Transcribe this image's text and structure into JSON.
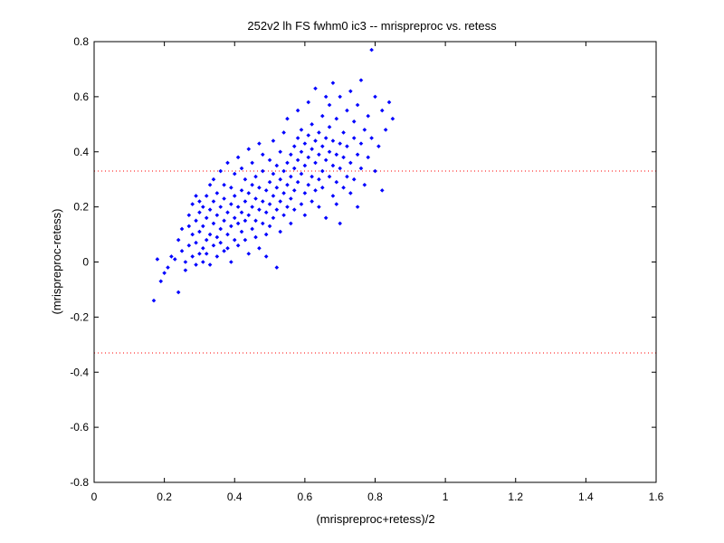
{
  "chart_data": {
    "type": "scatter",
    "title": "252v2 lh FS fwhm0 ic3 -- mrispreproc vs. retess",
    "xlabel": "(mrispreproc+retess)/2",
    "ylabel": "(mrispreproc-retess)",
    "xlim": [
      0,
      1.6
    ],
    "ylim": [
      -0.8,
      0.8
    ],
    "xticks": [
      "0",
      "0.2",
      "0.4",
      "0.6",
      "0.8",
      "1",
      "1.2",
      "1.4",
      "1.6"
    ],
    "yticks": [
      "-0.8",
      "-0.6",
      "-0.4",
      "-0.2",
      "0",
      "0.2",
      "0.4",
      "0.6",
      "0.8"
    ],
    "grid": false,
    "reference_lines": [
      {
        "y": 0.33,
        "style": "dotted",
        "color": "#ff0000"
      },
      {
        "y": -0.33,
        "style": "dotted",
        "color": "#ff0000"
      }
    ],
    "marker_color": "#0000ff",
    "series": [
      {
        "points": [
          [
            0.17,
            -0.14
          ],
          [
            0.18,
            0.01
          ],
          [
            0.19,
            -0.07
          ],
          [
            0.2,
            -0.04
          ],
          [
            0.21,
            -0.02
          ],
          [
            0.22,
            0.02
          ],
          [
            0.23,
            0.01
          ],
          [
            0.24,
            -0.11
          ],
          [
            0.24,
            0.08
          ],
          [
            0.25,
            0.04
          ],
          [
            0.25,
            0.12
          ],
          [
            0.26,
            0.0
          ],
          [
            0.26,
            -0.03
          ],
          [
            0.27,
            0.06
          ],
          [
            0.27,
            0.17
          ],
          [
            0.27,
            0.13
          ],
          [
            0.28,
            0.02
          ],
          [
            0.28,
            0.1
          ],
          [
            0.28,
            0.21
          ],
          [
            0.29,
            -0.01
          ],
          [
            0.29,
            0.07
          ],
          [
            0.29,
            0.15
          ],
          [
            0.29,
            0.24
          ],
          [
            0.3,
            0.03
          ],
          [
            0.3,
            0.11
          ],
          [
            0.3,
            0.18
          ],
          [
            0.3,
            0.22
          ],
          [
            0.31,
            0.0
          ],
          [
            0.31,
            0.05
          ],
          [
            0.31,
            0.13
          ],
          [
            0.31,
            0.2
          ],
          [
            0.32,
            0.08
          ],
          [
            0.32,
            0.16
          ],
          [
            0.32,
            0.24
          ],
          [
            0.32,
            0.03
          ],
          [
            0.33,
            0.1
          ],
          [
            0.33,
            0.19
          ],
          [
            0.33,
            0.28
          ],
          [
            0.33,
            -0.01
          ],
          [
            0.34,
            0.06
          ],
          [
            0.34,
            0.14
          ],
          [
            0.34,
            0.22
          ],
          [
            0.34,
            0.3
          ],
          [
            0.35,
            0.02
          ],
          [
            0.35,
            0.09
          ],
          [
            0.35,
            0.17
          ],
          [
            0.35,
            0.25
          ],
          [
            0.36,
            0.12
          ],
          [
            0.36,
            0.2
          ],
          [
            0.36,
            0.07
          ],
          [
            0.36,
            0.33
          ],
          [
            0.37,
            0.04
          ],
          [
            0.37,
            0.15
          ],
          [
            0.37,
            0.23
          ],
          [
            0.37,
            0.28
          ],
          [
            0.38,
            0.1
          ],
          [
            0.38,
            0.18
          ],
          [
            0.38,
            0.05
          ],
          [
            0.38,
            0.36
          ],
          [
            0.39,
            0.13
          ],
          [
            0.39,
            0.21
          ],
          [
            0.39,
            0.27
          ],
          [
            0.39,
            0.0
          ],
          [
            0.4,
            0.08
          ],
          [
            0.4,
            0.16
          ],
          [
            0.4,
            0.24
          ],
          [
            0.4,
            0.32
          ],
          [
            0.41,
            0.14
          ],
          [
            0.41,
            0.2
          ],
          [
            0.41,
            0.38
          ],
          [
            0.41,
            0.06
          ],
          [
            0.42,
            0.11
          ],
          [
            0.42,
            0.18
          ],
          [
            0.42,
            0.26
          ],
          [
            0.42,
            0.34
          ],
          [
            0.43,
            0.15
          ],
          [
            0.43,
            0.22
          ],
          [
            0.43,
            0.3
          ],
          [
            0.43,
            0.08
          ],
          [
            0.44,
            0.17
          ],
          [
            0.44,
            0.25
          ],
          [
            0.44,
            0.41
          ],
          [
            0.44,
            0.03
          ],
          [
            0.45,
            0.12
          ],
          [
            0.45,
            0.2
          ],
          [
            0.45,
            0.28
          ],
          [
            0.45,
            0.36
          ],
          [
            0.46,
            0.09
          ],
          [
            0.46,
            0.23
          ],
          [
            0.46,
            0.31
          ],
          [
            0.46,
            0.15
          ],
          [
            0.47,
            0.19
          ],
          [
            0.47,
            0.27
          ],
          [
            0.47,
            0.43
          ],
          [
            0.47,
            0.05
          ],
          [
            0.48,
            0.14
          ],
          [
            0.48,
            0.22
          ],
          [
            0.48,
            0.33
          ],
          [
            0.48,
            0.39
          ],
          [
            0.49,
            0.1
          ],
          [
            0.49,
            0.18
          ],
          [
            0.49,
            0.26
          ],
          [
            0.49,
            0.02
          ],
          [
            0.5,
            0.21
          ],
          [
            0.5,
            0.29
          ],
          [
            0.5,
            0.37
          ],
          [
            0.5,
            0.13
          ],
          [
            0.51,
            0.16
          ],
          [
            0.51,
            0.24
          ],
          [
            0.51,
            0.32
          ],
          [
            0.51,
            0.44
          ],
          [
            0.52,
            0.19
          ],
          [
            0.52,
            0.27
          ],
          [
            0.52,
            0.35
          ],
          [
            0.52,
            -0.02
          ],
          [
            0.53,
            0.11
          ],
          [
            0.53,
            0.22
          ],
          [
            0.53,
            0.3
          ],
          [
            0.53,
            0.4
          ],
          [
            0.54,
            0.25
          ],
          [
            0.54,
            0.33
          ],
          [
            0.54,
            0.17
          ],
          [
            0.54,
            0.47
          ],
          [
            0.55,
            0.2
          ],
          [
            0.55,
            0.28
          ],
          [
            0.55,
            0.36
          ],
          [
            0.55,
            0.52
          ],
          [
            0.56,
            0.23
          ],
          [
            0.56,
            0.31
          ],
          [
            0.56,
            0.39
          ],
          [
            0.56,
            0.14
          ],
          [
            0.57,
            0.26
          ],
          [
            0.57,
            0.34
          ],
          [
            0.57,
            0.42
          ],
          [
            0.57,
            0.19
          ],
          [
            0.58,
            0.29
          ],
          [
            0.58,
            0.37
          ],
          [
            0.58,
            0.45
          ],
          [
            0.58,
            0.55
          ],
          [
            0.59,
            0.21
          ],
          [
            0.59,
            0.32
          ],
          [
            0.59,
            0.4
          ],
          [
            0.59,
            0.48
          ],
          [
            0.6,
            0.25
          ],
          [
            0.6,
            0.35
          ],
          [
            0.6,
            0.43
          ],
          [
            0.6,
            0.17
          ],
          [
            0.61,
            0.28
          ],
          [
            0.61,
            0.38
          ],
          [
            0.61,
            0.46
          ],
          [
            0.61,
            0.58
          ],
          [
            0.62,
            0.22
          ],
          [
            0.62,
            0.31
          ],
          [
            0.62,
            0.41
          ],
          [
            0.62,
            0.5
          ],
          [
            0.63,
            0.26
          ],
          [
            0.63,
            0.36
          ],
          [
            0.63,
            0.44
          ],
          [
            0.63,
            0.63
          ],
          [
            0.64,
            0.3
          ],
          [
            0.64,
            0.39
          ],
          [
            0.64,
            0.47
          ],
          [
            0.64,
            0.2
          ],
          [
            0.65,
            0.33
          ],
          [
            0.65,
            0.42
          ],
          [
            0.65,
            0.53
          ],
          [
            0.65,
            0.27
          ],
          [
            0.66,
            0.37
          ],
          [
            0.66,
            0.45
          ],
          [
            0.66,
            0.6
          ],
          [
            0.66,
            0.16
          ],
          [
            0.67,
            0.31
          ],
          [
            0.67,
            0.4
          ],
          [
            0.67,
            0.49
          ],
          [
            0.67,
            0.57
          ],
          [
            0.68,
            0.24
          ],
          [
            0.68,
            0.35
          ],
          [
            0.68,
            0.44
          ],
          [
            0.68,
            0.65
          ],
          [
            0.69,
            0.29
          ],
          [
            0.69,
            0.39
          ],
          [
            0.69,
            0.52
          ],
          [
            0.69,
            0.21
          ],
          [
            0.7,
            0.34
          ],
          [
            0.7,
            0.43
          ],
          [
            0.7,
            0.6
          ],
          [
            0.7,
            0.14
          ],
          [
            0.71,
            0.27
          ],
          [
            0.71,
            0.47
          ],
          [
            0.71,
            0.38
          ],
          [
            0.72,
            0.31
          ],
          [
            0.72,
            0.55
          ],
          [
            0.72,
            0.42
          ],
          [
            0.73,
            0.36
          ],
          [
            0.73,
            0.62
          ],
          [
            0.73,
            0.25
          ],
          [
            0.74,
            0.45
          ],
          [
            0.74,
            0.51
          ],
          [
            0.74,
            0.3
          ],
          [
            0.75,
            0.39
          ],
          [
            0.75,
            0.57
          ],
          [
            0.75,
            0.2
          ],
          [
            0.76,
            0.43
          ],
          [
            0.76,
            0.66
          ],
          [
            0.76,
            0.34
          ],
          [
            0.77,
            0.48
          ],
          [
            0.77,
            0.28
          ],
          [
            0.78,
            0.53
          ],
          [
            0.78,
            0.38
          ],
          [
            0.79,
            0.77
          ],
          [
            0.79,
            0.45
          ],
          [
            0.8,
            0.6
          ],
          [
            0.8,
            0.33
          ],
          [
            0.81,
            0.42
          ],
          [
            0.82,
            0.55
          ],
          [
            0.82,
            0.26
          ],
          [
            0.83,
            0.48
          ],
          [
            0.84,
            0.58
          ],
          [
            0.85,
            0.52
          ]
        ]
      }
    ]
  }
}
